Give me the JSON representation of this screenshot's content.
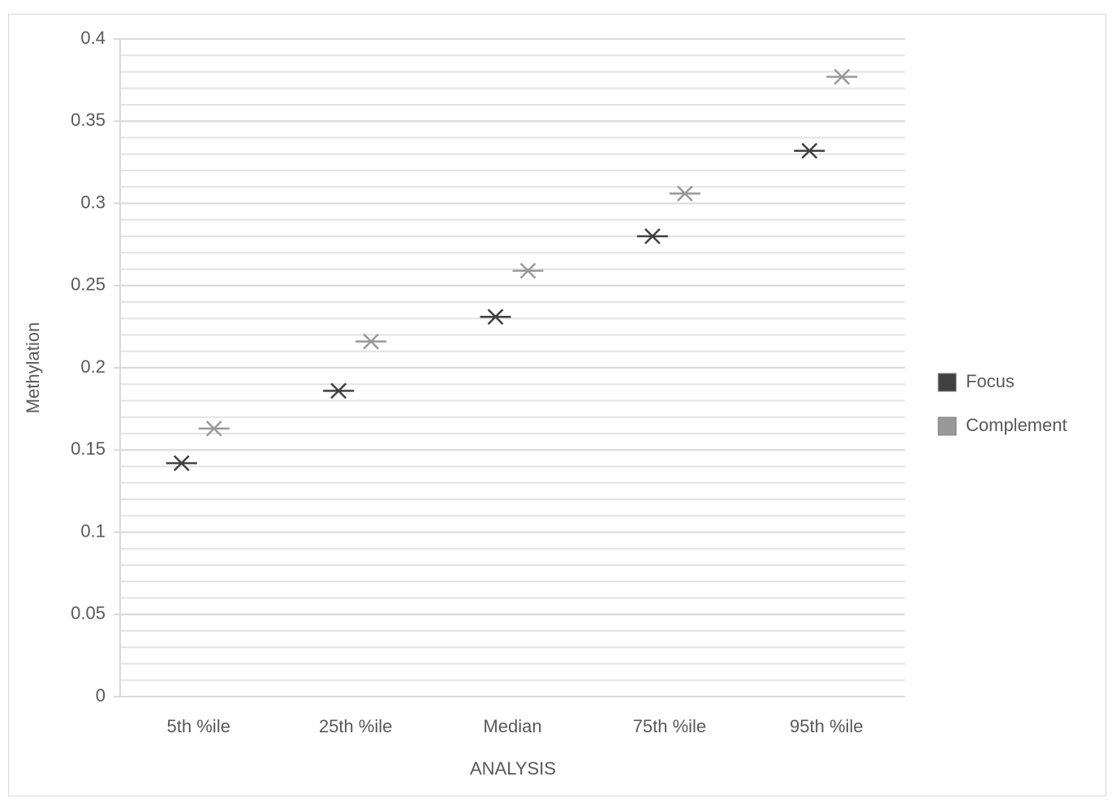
{
  "chart_data": {
    "type": "scatter",
    "x_label": "ANALYSIS",
    "y_label": "Methylation",
    "categories": [
      "5th %ile",
      "25th %ile",
      "Median",
      "75th %ile",
      "95th %ile"
    ],
    "series": [
      {
        "name": "Focus",
        "color": "#404040",
        "values": [
          0.142,
          0.186,
          0.231,
          0.28,
          0.332
        ]
      },
      {
        "name": "Complement",
        "color": "#999999",
        "values": [
          0.163,
          0.216,
          0.259,
          0.306,
          0.377
        ]
      }
    ],
    "ylim": [
      0,
      0.4
    ],
    "yticks": [
      0,
      0.05,
      0.1,
      0.15,
      0.2,
      0.25,
      0.3,
      0.35,
      0.4
    ],
    "grid": true,
    "minor_grid_step": 0.01,
    "legend": "right"
  }
}
